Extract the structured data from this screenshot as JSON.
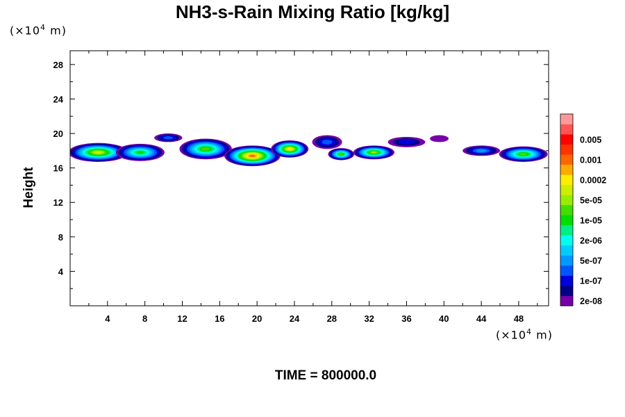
{
  "chart_data": {
    "type": "heatmap",
    "title": "NH3-s-Rain Mixing Ratio [kg/kg]",
    "ylabel": "Height",
    "xlabel": "",
    "x_unit": {
      "prefix": "(×10",
      "exp": "4",
      "suffix": " m)"
    },
    "y_unit": {
      "prefix": "(×10",
      "exp": "4",
      "suffix": " m)"
    },
    "xlim": [
      0,
      51.2
    ],
    "ylim": [
      0,
      29.6
    ],
    "x_ticks": [
      4,
      8,
      12,
      16,
      20,
      24,
      28,
      32,
      36,
      40,
      44,
      48
    ],
    "y_ticks": [
      4,
      8,
      12,
      16,
      20,
      24,
      28
    ],
    "footer": "TIME = 800000.0",
    "colorbar": {
      "colors": [
        "#7700aa",
        "#000088",
        "#0000dd",
        "#0055ff",
        "#0099ff",
        "#00ccff",
        "#00ffee",
        "#00ee88",
        "#00dd00",
        "#44dd00",
        "#99ee00",
        "#ccee00",
        "#ffee00",
        "#ffaa00",
        "#ff6600",
        "#ff3300",
        "#ff0000",
        "#ff5555",
        "#ff9999"
      ],
      "labels": [
        "2e-08",
        "1e-07",
        "5e-07",
        "2e-06",
        "1e-05",
        "5e-05",
        "0.0002",
        "0.001",
        "0.005"
      ]
    },
    "cells": [
      {
        "x": 3.0,
        "y": 17.8,
        "rx": 3.2,
        "ry": 1.1,
        "level": 11
      },
      {
        "x": 7.5,
        "y": 17.8,
        "rx": 2.6,
        "ry": 1.0,
        "level": 8
      },
      {
        "x": 10.5,
        "y": 19.5,
        "rx": 1.5,
        "ry": 0.5,
        "level": 3
      },
      {
        "x": 14.5,
        "y": 18.2,
        "rx": 2.8,
        "ry": 1.2,
        "level": 9
      },
      {
        "x": 19.5,
        "y": 17.4,
        "rx": 3.0,
        "ry": 1.2,
        "level": 14
      },
      {
        "x": 23.5,
        "y": 18.2,
        "rx": 2.0,
        "ry": 1.0,
        "level": 12
      },
      {
        "x": 27.5,
        "y": 19.0,
        "rx": 1.6,
        "ry": 0.8,
        "level": 3
      },
      {
        "x": 29.0,
        "y": 17.6,
        "rx": 1.4,
        "ry": 0.7,
        "level": 9
      },
      {
        "x": 32.5,
        "y": 17.8,
        "rx": 2.2,
        "ry": 0.8,
        "level": 10
      },
      {
        "x": 36.0,
        "y": 19.0,
        "rx": 2.0,
        "ry": 0.6,
        "level": 2
      },
      {
        "x": 39.5,
        "y": 19.4,
        "rx": 1.0,
        "ry": 0.4,
        "level": 0
      },
      {
        "x": 44.0,
        "y": 18.0,
        "rx": 2.0,
        "ry": 0.6,
        "level": 4
      },
      {
        "x": 48.5,
        "y": 17.6,
        "rx": 2.6,
        "ry": 0.9,
        "level": 9
      }
    ]
  }
}
